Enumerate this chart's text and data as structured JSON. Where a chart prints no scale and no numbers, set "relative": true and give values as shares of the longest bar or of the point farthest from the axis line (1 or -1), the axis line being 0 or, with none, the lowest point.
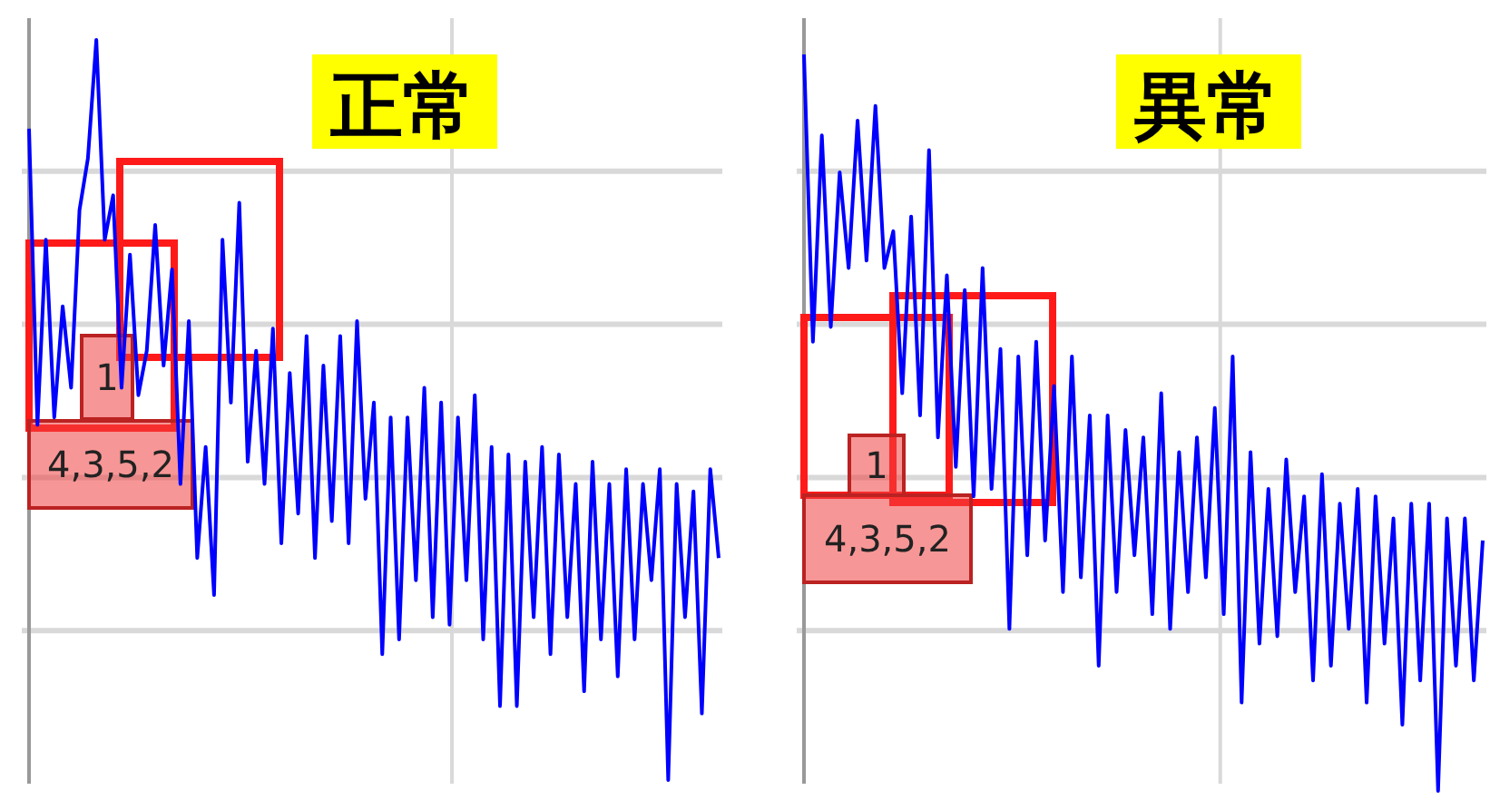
{
  "chart_data": [
    {
      "type": "line",
      "title": "正常",
      "relative": true,
      "grid": true,
      "annotations": [
        "1",
        "4,3,5,2"
      ],
      "categories": [
        null,
        null,
        null,
        null,
        null,
        null,
        null,
        null,
        null,
        null,
        null,
        null,
        null,
        null,
        null,
        null,
        null,
        null,
        null,
        null,
        null,
        null,
        null,
        null,
        null,
        null,
        null,
        null,
        null,
        null,
        null,
        null,
        null,
        null,
        null,
        null,
        null,
        null,
        null,
        null,
        null,
        null,
        null,
        null,
        null,
        null,
        null,
        null,
        null,
        null,
        null,
        null,
        null,
        null,
        null,
        null,
        null,
        null,
        null,
        null,
        null,
        null,
        null,
        null,
        null,
        null,
        null,
        null,
        null,
        null,
        null,
        null,
        null,
        null,
        null,
        null,
        null,
        null,
        null,
        null,
        null,
        null,
        null
      ],
      "series": [
        {
          "color": "#0000ff",
          "values": [
            0.88,
            0.48,
            0.73,
            0.49,
            0.64,
            0.53,
            0.77,
            0.84,
            1,
            0.73,
            0.79,
            0.53,
            0.71,
            0.52,
            0.58,
            0.75,
            0.56,
            0.69,
            0.4,
            0.62,
            0.3,
            0.45,
            0.25,
            0.73,
            0.51,
            0.78,
            0.43,
            0.58,
            0.4,
            0.61,
            0.32,
            0.55,
            0.36,
            0.6,
            0.3,
            0.56,
            0.35,
            0.6,
            0.32,
            0.62,
            0.38,
            0.51,
            0.17,
            0.49,
            0.19,
            0.49,
            0.27,
            0.53,
            0.22,
            0.51,
            0.21,
            0.49,
            0.27,
            0.52,
            0.19,
            0.45,
            0.1,
            0.44,
            0.1,
            0.43,
            0.22,
            0.45,
            0.17,
            0.44,
            0.22,
            0.4,
            0.12,
            0.43,
            0.19,
            0.4,
            0.14,
            0.42,
            0.19,
            0.4,
            0.27,
            0.42,
            0,
            0.4,
            0.22,
            0.39,
            0.09,
            0.42,
            0.3
          ]
        }
      ]
    },
    {
      "type": "line",
      "title": "異常",
      "relative": true,
      "grid": true,
      "annotations": [
        "1",
        "4,3,5,2"
      ],
      "categories": [
        null,
        null,
        null,
        null,
        null,
        null,
        null,
        null,
        null,
        null,
        null,
        null,
        null,
        null,
        null,
        null,
        null,
        null,
        null,
        null,
        null,
        null,
        null,
        null,
        null,
        null,
        null,
        null,
        null,
        null,
        null,
        null,
        null,
        null,
        null,
        null,
        null,
        null,
        null,
        null,
        null,
        null,
        null,
        null,
        null,
        null,
        null,
        null,
        null,
        null,
        null,
        null,
        null,
        null,
        null,
        null,
        null,
        null,
        null,
        null,
        null,
        null,
        null,
        null,
        null,
        null,
        null,
        null,
        null,
        null,
        null,
        null,
        null,
        null,
        null,
        null,
        null
      ],
      "series": [
        {
          "color": "#0000ff",
          "values": [
            1,
            0.61,
            0.89,
            0.63,
            0.84,
            0.71,
            0.91,
            0.72,
            0.93,
            0.71,
            0.76,
            0.54,
            0.78,
            0.51,
            0.87,
            0.48,
            0.7,
            0.44,
            0.68,
            0.4,
            0.71,
            0.41,
            0.6,
            0.22,
            0.59,
            0.32,
            0.61,
            0.34,
            0.55,
            0.27,
            0.59,
            0.29,
            0.51,
            0.17,
            0.51,
            0.27,
            0.49,
            0.32,
            0.48,
            0.24,
            0.54,
            0.22,
            0.46,
            0.27,
            0.48,
            0.29,
            0.52,
            0.24,
            0.59,
            0.12,
            0.46,
            0.2,
            0.41,
            0.21,
            0.45,
            0.27,
            0.4,
            0.15,
            0.43,
            0.17,
            0.39,
            0.22,
            0.41,
            0.12,
            0.4,
            0.2,
            0.37,
            0.09,
            0.39,
            0.15,
            0.39,
            0,
            0.37,
            0.17,
            0.37,
            0.15,
            0.34
          ]
        }
      ]
    }
  ]
}
